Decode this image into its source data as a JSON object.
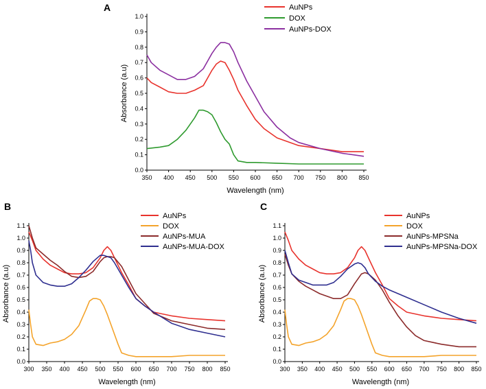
{
  "chart_data": [
    {
      "panel": "A",
      "type": "line",
      "xlabel": "Wavelength (nm)",
      "ylabel": "Absorbance (a.u)",
      "xlim": [
        350,
        850
      ],
      "ylim": [
        0,
        1.0
      ],
      "xticks": [
        350,
        400,
        450,
        500,
        550,
        600,
        650,
        700,
        750,
        800,
        850
      ],
      "yticks": [
        0.0,
        0.1,
        0.2,
        0.3,
        0.4,
        0.5,
        0.6,
        0.7,
        0.8,
        0.9,
        1.0
      ],
      "legend_position": "top-right",
      "series": [
        {
          "name": "AuNPs",
          "color": "#e8322c",
          "x": [
            350,
            360,
            380,
            400,
            420,
            440,
            460,
            480,
            490,
            500,
            510,
            520,
            530,
            540,
            550,
            560,
            580,
            600,
            620,
            650,
            680,
            700,
            750,
            800,
            825,
            850
          ],
          "y": [
            0.6,
            0.57,
            0.54,
            0.51,
            0.5,
            0.5,
            0.52,
            0.55,
            0.6,
            0.65,
            0.69,
            0.71,
            0.7,
            0.65,
            0.59,
            0.52,
            0.42,
            0.33,
            0.27,
            0.21,
            0.18,
            0.16,
            0.14,
            0.12,
            0.12,
            0.12
          ]
        },
        {
          "name": "DOX",
          "color": "#2e9a2e",
          "x": [
            350,
            380,
            400,
            420,
            440,
            460,
            470,
            480,
            490,
            500,
            510,
            520,
            530,
            540,
            550,
            560,
            580,
            600,
            650,
            700,
            750,
            800,
            850
          ],
          "y": [
            0.14,
            0.15,
            0.16,
            0.2,
            0.26,
            0.34,
            0.39,
            0.39,
            0.38,
            0.36,
            0.31,
            0.25,
            0.2,
            0.17,
            0.1,
            0.06,
            0.05,
            0.05,
            0.045,
            0.04,
            0.04,
            0.04,
            0.04
          ]
        },
        {
          "name": "AuNPs-DOX",
          "color": "#8b2fa0",
          "x": [
            350,
            360,
            380,
            400,
            420,
            440,
            460,
            480,
            490,
            500,
            510,
            520,
            530,
            540,
            550,
            560,
            580,
            600,
            620,
            650,
            680,
            700,
            750,
            800,
            850
          ],
          "y": [
            0.75,
            0.7,
            0.65,
            0.62,
            0.59,
            0.59,
            0.61,
            0.66,
            0.71,
            0.76,
            0.8,
            0.83,
            0.83,
            0.82,
            0.77,
            0.7,
            0.58,
            0.48,
            0.38,
            0.28,
            0.21,
            0.18,
            0.14,
            0.11,
            0.09
          ]
        }
      ]
    },
    {
      "panel": "B",
      "type": "line",
      "xlabel": "Wavelength (nm)",
      "ylabel": "Absorbance (a.u)",
      "xlim": [
        300,
        850
      ],
      "ylim": [
        0,
        1.1
      ],
      "xticks": [
        300,
        350,
        400,
        450,
        500,
        550,
        600,
        650,
        700,
        750,
        800,
        850
      ],
      "yticks": [
        0.0,
        0.1,
        0.2,
        0.3,
        0.4,
        0.5,
        0.6,
        0.7,
        0.8,
        0.9,
        1.0,
        1.1
      ],
      "legend_position": "top-right",
      "series": [
        {
          "name": "AuNPs",
          "color": "#e8322c",
          "x": [
            300,
            310,
            320,
            340,
            360,
            380,
            400,
            420,
            440,
            460,
            480,
            500,
            510,
            520,
            530,
            540,
            560,
            580,
            600,
            625,
            650,
            700,
            750,
            800,
            850
          ],
          "y": [
            1.05,
            0.98,
            0.9,
            0.83,
            0.78,
            0.75,
            0.72,
            0.71,
            0.71,
            0.72,
            0.76,
            0.84,
            0.9,
            0.93,
            0.9,
            0.84,
            0.72,
            0.62,
            0.51,
            0.45,
            0.4,
            0.37,
            0.35,
            0.34,
            0.33
          ]
        },
        {
          "name": "DOX",
          "color": "#f4a32a",
          "x": [
            300,
            305,
            310,
            320,
            340,
            360,
            380,
            400,
            420,
            440,
            460,
            470,
            480,
            490,
            500,
            510,
            520,
            530,
            540,
            550,
            560,
            580,
            600,
            650,
            700,
            750,
            800,
            850
          ],
          "y": [
            0.42,
            0.3,
            0.2,
            0.14,
            0.13,
            0.15,
            0.16,
            0.18,
            0.22,
            0.29,
            0.42,
            0.49,
            0.51,
            0.51,
            0.5,
            0.45,
            0.38,
            0.3,
            0.22,
            0.14,
            0.07,
            0.05,
            0.04,
            0.04,
            0.04,
            0.05,
            0.05,
            0.05
          ]
        },
        {
          "name": "AuNPs-MUA",
          "color": "#8b2a2a",
          "x": [
            300,
            310,
            320,
            340,
            360,
            380,
            400,
            420,
            440,
            460,
            480,
            500,
            510,
            520,
            530,
            540,
            560,
            580,
            600,
            625,
            650,
            700,
            750,
            800,
            850
          ],
          "y": [
            1.1,
            1.0,
            0.92,
            0.87,
            0.82,
            0.78,
            0.73,
            0.69,
            0.68,
            0.69,
            0.73,
            0.81,
            0.84,
            0.85,
            0.85,
            0.84,
            0.77,
            0.66,
            0.55,
            0.47,
            0.39,
            0.33,
            0.3,
            0.27,
            0.26
          ]
        },
        {
          "name": "AuNPs-MUA-DOX",
          "color": "#2e2e8f",
          "x": [
            300,
            305,
            310,
            320,
            340,
            360,
            380,
            400,
            420,
            440,
            460,
            480,
            500,
            510,
            520,
            530,
            540,
            560,
            580,
            600,
            625,
            650,
            700,
            750,
            800,
            850
          ],
          "y": [
            0.98,
            0.9,
            0.8,
            0.7,
            0.64,
            0.62,
            0.61,
            0.61,
            0.63,
            0.68,
            0.74,
            0.81,
            0.86,
            0.86,
            0.85,
            0.84,
            0.8,
            0.7,
            0.6,
            0.51,
            0.45,
            0.4,
            0.31,
            0.26,
            0.23,
            0.2
          ]
        }
      ]
    },
    {
      "panel": "C",
      "type": "line",
      "xlabel": "Wavelength (nm)",
      "ylabel": "Absorbance (a.u)",
      "xlim": [
        300,
        850
      ],
      "ylim": [
        0,
        1.1
      ],
      "xticks": [
        300,
        350,
        400,
        450,
        500,
        550,
        600,
        650,
        700,
        750,
        800,
        850
      ],
      "yticks": [
        0.0,
        0.1,
        0.2,
        0.3,
        0.4,
        0.5,
        0.6,
        0.7,
        0.8,
        0.9,
        1.0,
        1.1
      ],
      "legend_position": "top-right",
      "series": [
        {
          "name": "AuNPs",
          "color": "#e8322c",
          "x": [
            300,
            310,
            320,
            340,
            360,
            380,
            400,
            420,
            440,
            460,
            480,
            500,
            510,
            520,
            530,
            540,
            560,
            580,
            600,
            625,
            650,
            700,
            750,
            800,
            850
          ],
          "y": [
            1.05,
            0.98,
            0.9,
            0.83,
            0.78,
            0.75,
            0.72,
            0.71,
            0.71,
            0.72,
            0.76,
            0.84,
            0.9,
            0.93,
            0.9,
            0.84,
            0.72,
            0.62,
            0.51,
            0.45,
            0.4,
            0.37,
            0.35,
            0.34,
            0.33
          ]
        },
        {
          "name": "DOX",
          "color": "#f4a32a",
          "x": [
            300,
            305,
            310,
            320,
            340,
            360,
            380,
            400,
            420,
            440,
            460,
            470,
            480,
            490,
            500,
            510,
            520,
            530,
            540,
            550,
            560,
            580,
            600,
            650,
            700,
            750,
            800,
            850
          ],
          "y": [
            0.42,
            0.3,
            0.2,
            0.14,
            0.13,
            0.15,
            0.16,
            0.18,
            0.22,
            0.29,
            0.42,
            0.49,
            0.51,
            0.51,
            0.5,
            0.45,
            0.38,
            0.3,
            0.22,
            0.14,
            0.07,
            0.05,
            0.04,
            0.04,
            0.04,
            0.05,
            0.05,
            0.05
          ]
        },
        {
          "name": "AuNPs-MPSNa",
          "color": "#8b2a2a",
          "x": [
            300,
            310,
            320,
            340,
            360,
            380,
            400,
            420,
            440,
            460,
            480,
            500,
            520,
            530,
            540,
            560,
            580,
            600,
            625,
            650,
            675,
            700,
            750,
            800,
            850
          ],
          "y": [
            0.87,
            0.78,
            0.71,
            0.65,
            0.61,
            0.58,
            0.55,
            0.53,
            0.51,
            0.51,
            0.54,
            0.63,
            0.71,
            0.72,
            0.71,
            0.66,
            0.58,
            0.48,
            0.37,
            0.28,
            0.21,
            0.17,
            0.14,
            0.12,
            0.12
          ]
        },
        {
          "name": "AuNPs-MPSNa-DOX",
          "color": "#2e2e8f",
          "x": [
            300,
            310,
            320,
            340,
            360,
            380,
            400,
            420,
            440,
            460,
            480,
            500,
            510,
            520,
            530,
            540,
            560,
            580,
            600,
            625,
            650,
            700,
            750,
            800,
            850
          ],
          "y": [
            0.9,
            0.8,
            0.71,
            0.66,
            0.64,
            0.62,
            0.62,
            0.62,
            0.64,
            0.69,
            0.75,
            0.79,
            0.8,
            0.79,
            0.76,
            0.71,
            0.65,
            0.61,
            0.58,
            0.55,
            0.52,
            0.46,
            0.4,
            0.35,
            0.31
          ]
        }
      ]
    }
  ]
}
